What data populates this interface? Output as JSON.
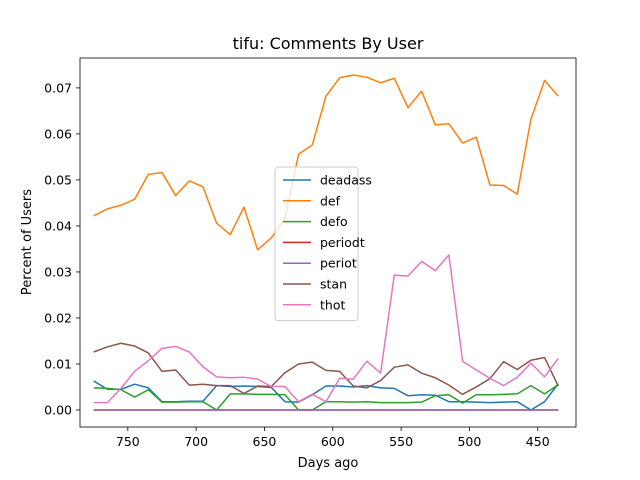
{
  "chart_data": {
    "type": "line",
    "title": "tifu: Comments By User",
    "xlabel": "Days ago",
    "ylabel": "Percent of Users",
    "x_inverted": true,
    "xlim": [
      785,
      422
    ],
    "ylim": [
      -0.0037,
      0.0765
    ],
    "xticks": [
      750,
      700,
      650,
      600,
      550,
      500,
      450
    ],
    "xtick_labels": [
      "750",
      "700",
      "650",
      "600",
      "550",
      "500",
      "450"
    ],
    "yticks": [
      0.0,
      0.01,
      0.02,
      0.03,
      0.04,
      0.05,
      0.06,
      0.07
    ],
    "ytick_labels": [
      "0.00",
      "0.01",
      "0.02",
      "0.03",
      "0.04",
      "0.05",
      "0.06",
      "0.07"
    ],
    "grid": false,
    "legend_position": "center",
    "x": [
      775,
      765,
      755,
      745,
      735,
      725,
      715,
      705,
      695,
      685,
      675,
      665,
      655,
      645,
      635,
      625,
      615,
      605,
      595,
      585,
      575,
      565,
      555,
      545,
      535,
      525,
      515,
      505,
      495,
      485,
      475,
      465,
      455,
      445,
      435
    ],
    "series": [
      {
        "name": "deadass",
        "color": "#1f77b4",
        "values": [
          0.0063,
          0.0045,
          0.0045,
          0.0056,
          0.0048,
          0.0018,
          0.0018,
          0.0019,
          0.0019,
          0.0053,
          0.0051,
          0.0052,
          0.0051,
          0.0049,
          0.0018,
          0.0017,
          0.0033,
          0.0052,
          0.0052,
          0.005,
          0.0053,
          0.0048,
          0.0047,
          0.0031,
          0.0033,
          0.0032,
          0.0018,
          0.0018,
          0.0017,
          0.0016,
          0.0017,
          0.0018,
          0.0,
          0.0018,
          0.0057
        ]
      },
      {
        "name": "def",
        "color": "#ff7f0e",
        "values": [
          0.0422,
          0.0437,
          0.0445,
          0.0458,
          0.0512,
          0.0516,
          0.0466,
          0.0498,
          0.0485,
          0.0406,
          0.0381,
          0.0441,
          0.0348,
          0.0374,
          0.0416,
          0.0556,
          0.0576,
          0.0682,
          0.0722,
          0.0728,
          0.0723,
          0.0711,
          0.0721,
          0.0657,
          0.0693,
          0.062,
          0.0622,
          0.058,
          0.0593,
          0.0489,
          0.0488,
          0.0469,
          0.0632,
          0.0716,
          0.0682
        ]
      },
      {
        "name": "defo",
        "color": "#2ca02c",
        "values": [
          0.0048,
          0.0047,
          0.0044,
          0.0028,
          0.0044,
          0.0017,
          0.0017,
          0.0018,
          0.0018,
          0.0,
          0.0035,
          0.0035,
          0.0034,
          0.0034,
          0.0033,
          0.0,
          0.0,
          0.0018,
          0.0018,
          0.0017,
          0.0018,
          0.0016,
          0.0016,
          0.0016,
          0.0017,
          0.0031,
          0.0033,
          0.0015,
          0.0033,
          0.0033,
          0.0034,
          0.0035,
          0.0053,
          0.0035,
          0.0055
        ]
      },
      {
        "name": "periodt",
        "color": "#d62728",
        "values": [
          0,
          0,
          0,
          0,
          0,
          0,
          0,
          0,
          0,
          0,
          0,
          0,
          0,
          0,
          0,
          0,
          0,
          0,
          0,
          0,
          0,
          0,
          0,
          0,
          0,
          0,
          0,
          0,
          0,
          0,
          0,
          0,
          0,
          0,
          0
        ]
      },
      {
        "name": "periot",
        "color": "#9467bd",
        "values": [
          0,
          0,
          0,
          0,
          0,
          0,
          0,
          0,
          0,
          0,
          0,
          0,
          0,
          0,
          0,
          0,
          0,
          0,
          0,
          0,
          0,
          0,
          0,
          0,
          0,
          0,
          0,
          0,
          0,
          0,
          0,
          0,
          0,
          0,
          0
        ]
      },
      {
        "name": "stan",
        "color": "#8c564b",
        "values": [
          0.0126,
          0.0137,
          0.0145,
          0.0139,
          0.0124,
          0.0084,
          0.0087,
          0.0054,
          0.0056,
          0.0053,
          0.0053,
          0.0036,
          0.0052,
          0.0051,
          0.0081,
          0.01,
          0.0104,
          0.0086,
          0.0084,
          0.0052,
          0.0048,
          0.0064,
          0.0093,
          0.0098,
          0.008,
          0.007,
          0.0054,
          0.0034,
          0.005,
          0.0068,
          0.0105,
          0.0088,
          0.0108,
          0.0114,
          0.0052
        ]
      },
      {
        "name": "thot",
        "color": "#e377c2",
        "values": [
          0.0016,
          0.0016,
          0.0047,
          0.0084,
          0.0107,
          0.0134,
          0.0138,
          0.0126,
          0.0094,
          0.0072,
          0.007,
          0.0071,
          0.0067,
          0.0051,
          0.0051,
          0.0018,
          0.0034,
          0.0018,
          0.0069,
          0.0067,
          0.0106,
          0.008,
          0.0293,
          0.0291,
          0.0323,
          0.0303,
          0.0337,
          0.0106,
          0.0087,
          0.0069,
          0.0053,
          0.0071,
          0.0102,
          0.0072,
          0.0112
        ]
      }
    ]
  }
}
